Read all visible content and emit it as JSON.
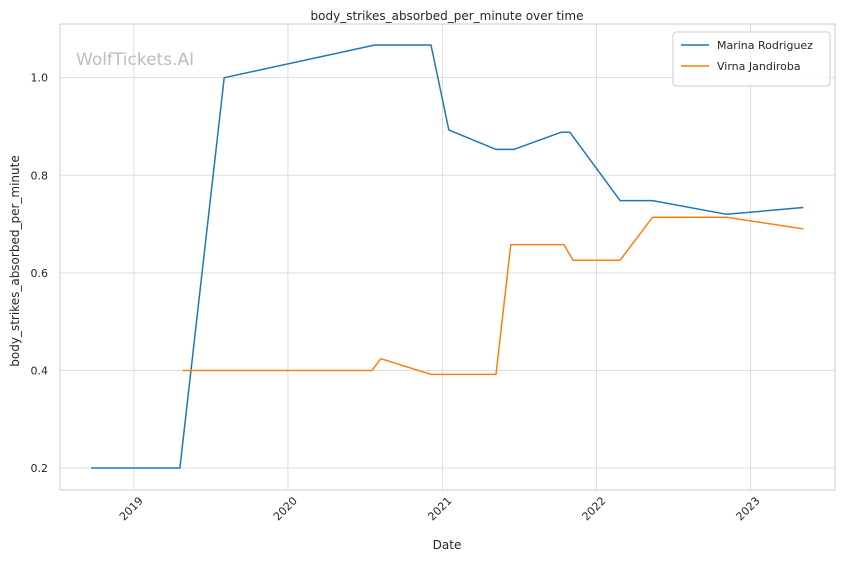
{
  "chart_data": {
    "type": "line",
    "title": "body_strikes_absorbed_per_minute over time",
    "xlabel": "Date",
    "ylabel": "body_strikes_absorbed_per_minute",
    "watermark": "WolfTickets.AI",
    "x_axis": {
      "type": "date",
      "range": [
        "2018-07-10",
        "2023-07-20"
      ],
      "ticks": [
        {
          "date": "2019-01-01",
          "label": "2019"
        },
        {
          "date": "2020-01-01",
          "label": "2020"
        },
        {
          "date": "2021-01-01",
          "label": "2021"
        },
        {
          "date": "2022-01-01",
          "label": "2022"
        },
        {
          "date": "2023-01-01",
          "label": "2023"
        }
      ]
    },
    "y_axis": {
      "range": [
        0.155,
        1.11
      ],
      "ticks": [
        0.2,
        0.4,
        0.6,
        0.8,
        1.0
      ],
      "tick_labels": [
        "0.2",
        "0.4",
        "0.6",
        "0.8",
        "1.0"
      ]
    },
    "grid": true,
    "legend": {
      "placement": "top-right"
    },
    "series": [
      {
        "name": "Marina Rodriguez",
        "color": "#1f77b4",
        "points": [
          {
            "x": "2018-09-22",
            "y": 0.2
          },
          {
            "x": "2019-04-20",
            "y": 0.2
          },
          {
            "x": "2019-08-03",
            "y": 1.0
          },
          {
            "x": "2020-07-25",
            "y": 1.067
          },
          {
            "x": "2020-12-05",
            "y": 1.067
          },
          {
            "x": "2021-01-16",
            "y": 0.893
          },
          {
            "x": "2021-05-08",
            "y": 0.853
          },
          {
            "x": "2021-06-19",
            "y": 0.853
          },
          {
            "x": "2021-10-09",
            "y": 0.888
          },
          {
            "x": "2021-10-30",
            "y": 0.888
          },
          {
            "x": "2022-02-26",
            "y": 0.748
          },
          {
            "x": "2022-05-14",
            "y": 0.748
          },
          {
            "x": "2022-11-05",
            "y": 0.72
          },
          {
            "x": "2023-05-06",
            "y": 0.734
          }
        ]
      },
      {
        "name": "Virna Jandiroba",
        "color": "#ff7f0e",
        "points": [
          {
            "x": "2019-04-27",
            "y": 0.4
          },
          {
            "x": "2020-07-18",
            "y": 0.4
          },
          {
            "x": "2020-08-08",
            "y": 0.424
          },
          {
            "x": "2020-12-05",
            "y": 0.392
          },
          {
            "x": "2021-05-08",
            "y": 0.392
          },
          {
            "x": "2021-06-12",
            "y": 0.658
          },
          {
            "x": "2021-10-16",
            "y": 0.658
          },
          {
            "x": "2021-11-06",
            "y": 0.626
          },
          {
            "x": "2022-02-26",
            "y": 0.626
          },
          {
            "x": "2022-05-14",
            "y": 0.714
          },
          {
            "x": "2022-11-05",
            "y": 0.714
          },
          {
            "x": "2023-05-06",
            "y": 0.69
          }
        ]
      }
    ]
  }
}
